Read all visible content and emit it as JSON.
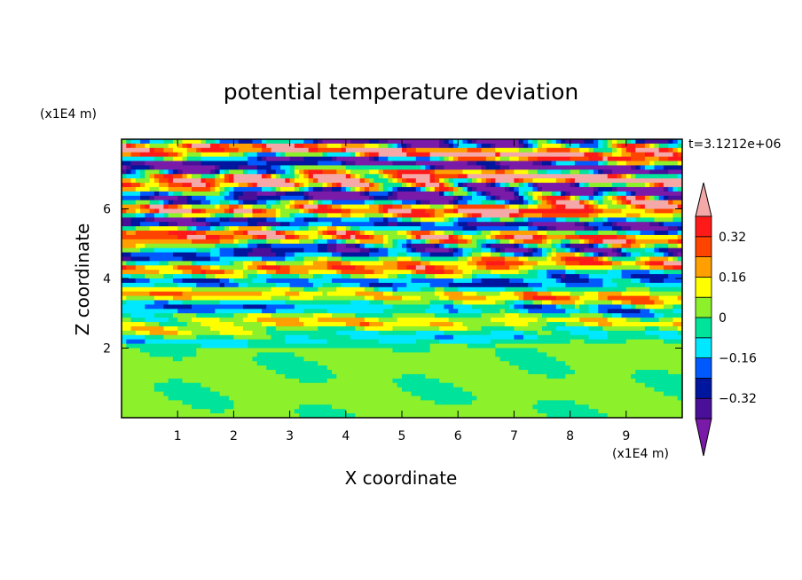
{
  "chart_data": {
    "type": "heatmap",
    "title": "potential temperature deviation",
    "xlabel": "X coordinate",
    "ylabel": "Z coordinate",
    "x_unit": "(x1E4 m)",
    "y_unit": "(x1E4 m)",
    "time_label": "t=3.1212e+06",
    "xlim": [
      0,
      10
    ],
    "ylim": [
      0,
      8
    ],
    "x_ticks": [
      "1",
      "2",
      "3",
      "4",
      "5",
      "6",
      "7",
      "8",
      "9"
    ],
    "y_ticks": [
      "2",
      "4",
      "6"
    ],
    "colorbar": {
      "levels": [
        -0.4,
        -0.32,
        -0.24,
        -0.16,
        -0.08,
        0,
        0.08,
        0.16,
        0.24,
        0.32,
        0.4
      ],
      "tick_labels": [
        "0.32",
        "0.16",
        "0",
        "−0.16",
        "−0.32"
      ],
      "tick_values": [
        0.32,
        0.16,
        0,
        -0.16,
        -0.32
      ],
      "colors": [
        "#7a1aa8",
        "#4a0f98",
        "#00169e",
        "#0059ff",
        "#00e8ff",
        "#00e39a",
        "#8cf02a",
        "#ffff00",
        "#ffa000",
        "#ff4400",
        "#ff1a1a",
        "#f5a8a8"
      ]
    }
  }
}
